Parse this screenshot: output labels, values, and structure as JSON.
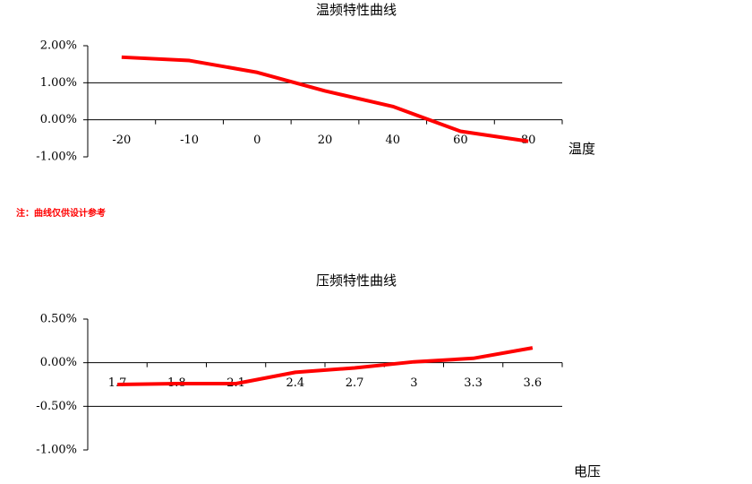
{
  "chart_data": [
    {
      "type": "line",
      "title": "温频特性曲线",
      "x_label": "温度",
      "categories": [
        "-20",
        "-10",
        "0",
        "20",
        "40",
        "60",
        "80"
      ],
      "series": [
        {
          "color": "#ff0000",
          "values": [
            1.69,
            1.6,
            1.28,
            0.78,
            0.36,
            -0.31,
            -0.58
          ]
        }
      ],
      "ylim": [
        -1,
        2
      ],
      "yticks": [
        {
          "value": -1,
          "label": "-1.00%"
        },
        {
          "value": 0,
          "label": "0.00%"
        },
        {
          "value": 1,
          "label": "1.00%"
        },
        {
          "value": 2,
          "label": "2.00%"
        }
      ],
      "grid": true
    },
    {
      "type": "line",
      "title": "压频特性曲线",
      "x_label": "电压",
      "categories": [
        "1.7",
        "1.8",
        "2.1",
        "2.4",
        "2.7",
        "3",
        "3.3",
        "3.6"
      ],
      "series": [
        {
          "color": "#ff0000",
          "values": [
            -0.25,
            -0.24,
            -0.24,
            -0.11,
            -0.06,
            0.01,
            0.05,
            0.17
          ]
        }
      ],
      "ylim": [
        -1,
        0.5
      ],
      "yticks": [
        {
          "value": -1,
          "label": "-1.00%"
        },
        {
          "value": -0.5,
          "label": "-0.50%"
        },
        {
          "value": 0,
          "label": "0.00%"
        },
        {
          "value": 0.5,
          "label": "0.50%"
        }
      ],
      "grid": true
    }
  ],
  "note": "注：曲线仅供设计参考"
}
